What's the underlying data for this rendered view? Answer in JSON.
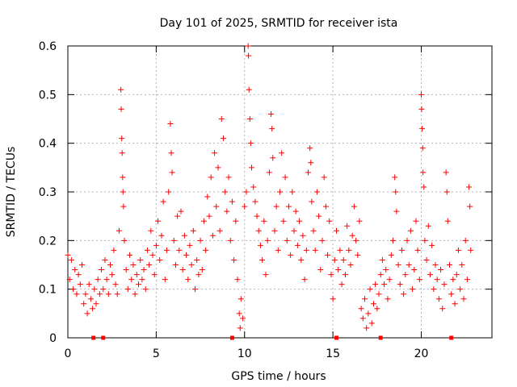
{
  "chart_data": {
    "type": "scatter",
    "title": "Day 101 of 2025, SRMTID for receiver ista",
    "xlabel": "GPS time / hours",
    "ylabel": "SRMTID / TECUs",
    "xlim": [
      0,
      24
    ],
    "ylim": [
      0,
      0.6
    ],
    "xticks": [
      0,
      5,
      10,
      15,
      20
    ],
    "xtick_labels": [
      "0",
      "5",
      "10",
      "15",
      "20"
    ],
    "yticks": [
      0,
      0.1,
      0.2,
      0.3,
      0.4,
      0.5,
      0.6
    ],
    "ytick_labels": [
      "0",
      "0.1",
      "0.2",
      "0.3",
      "0.4",
      "0.5",
      "0.6"
    ],
    "grid": true,
    "marker": "+",
    "colors": {
      "data": "#ff0000",
      "grid": "#b4b4b4",
      "axis": "#000000"
    },
    "zero_markers_x": [
      1.45,
      2.0,
      9.3,
      15.2,
      17.7,
      21.7
    ],
    "series": [
      {
        "name": "SRMTID",
        "points": [
          [
            0.0,
            0.17
          ],
          [
            0.1,
            0.12
          ],
          [
            0.2,
            0.16
          ],
          [
            0.3,
            0.1
          ],
          [
            0.4,
            0.14
          ],
          [
            0.5,
            0.09
          ],
          [
            0.6,
            0.13
          ],
          [
            0.7,
            0.11
          ],
          [
            0.8,
            0.15
          ],
          [
            0.9,
            0.07
          ],
          [
            1.0,
            0.09
          ],
          [
            1.1,
            0.05
          ],
          [
            1.2,
            0.11
          ],
          [
            1.3,
            0.08
          ],
          [
            1.4,
            0.06
          ],
          [
            1.5,
            0.1
          ],
          [
            1.6,
            0.07
          ],
          [
            1.7,
            0.12
          ],
          [
            1.8,
            0.09
          ],
          [
            1.9,
            0.14
          ],
          [
            2.0,
            0.1
          ],
          [
            2.1,
            0.16
          ],
          [
            2.2,
            0.12
          ],
          [
            2.3,
            0.09
          ],
          [
            2.4,
            0.15
          ],
          [
            2.5,
            0.13
          ],
          [
            2.6,
            0.18
          ],
          [
            2.7,
            0.11
          ],
          [
            2.8,
            0.09
          ],
          [
            2.9,
            0.22
          ],
          [
            3.0,
            0.51
          ],
          [
            3.02,
            0.47
          ],
          [
            3.05,
            0.41
          ],
          [
            3.07,
            0.38
          ],
          [
            3.1,
            0.33
          ],
          [
            3.12,
            0.3
          ],
          [
            3.15,
            0.27
          ],
          [
            3.2,
            0.2
          ],
          [
            3.3,
            0.14
          ],
          [
            3.4,
            0.1
          ],
          [
            3.5,
            0.17
          ],
          [
            3.6,
            0.12
          ],
          [
            3.7,
            0.15
          ],
          [
            3.8,
            0.09
          ],
          [
            3.9,
            0.13
          ],
          [
            4.0,
            0.11
          ],
          [
            4.1,
            0.16
          ],
          [
            4.2,
            0.12
          ],
          [
            4.3,
            0.14
          ],
          [
            4.4,
            0.1
          ],
          [
            4.5,
            0.18
          ],
          [
            4.6,
            0.15
          ],
          [
            4.7,
            0.22
          ],
          [
            4.8,
            0.17
          ],
          [
            4.9,
            0.13
          ],
          [
            5.0,
            0.19
          ],
          [
            5.1,
            0.24
          ],
          [
            5.2,
            0.16
          ],
          [
            5.3,
            0.21
          ],
          [
            5.4,
            0.28
          ],
          [
            5.5,
            0.12
          ],
          [
            5.6,
            0.18
          ],
          [
            5.7,
            0.3
          ],
          [
            5.8,
            0.44
          ],
          [
            5.85,
            0.38
          ],
          [
            5.9,
            0.34
          ],
          [
            6.0,
            0.2
          ],
          [
            6.1,
            0.15
          ],
          [
            6.2,
            0.25
          ],
          [
            6.3,
            0.18
          ],
          [
            6.4,
            0.26
          ],
          [
            6.5,
            0.14
          ],
          [
            6.6,
            0.21
          ],
          [
            6.7,
            0.17
          ],
          [
            6.8,
            0.12
          ],
          [
            6.9,
            0.19
          ],
          [
            7.0,
            0.15
          ],
          [
            7.1,
            0.22
          ],
          [
            7.2,
            0.1
          ],
          [
            7.3,
            0.16
          ],
          [
            7.4,
            0.13
          ],
          [
            7.5,
            0.2
          ],
          [
            7.6,
            0.14
          ],
          [
            7.7,
            0.24
          ],
          [
            7.8,
            0.18
          ],
          [
            7.9,
            0.29
          ],
          [
            8.0,
            0.25
          ],
          [
            8.1,
            0.33
          ],
          [
            8.2,
            0.21
          ],
          [
            8.3,
            0.38
          ],
          [
            8.4,
            0.27
          ],
          [
            8.5,
            0.35
          ],
          [
            8.6,
            0.22
          ],
          [
            8.7,
            0.45
          ],
          [
            8.8,
            0.41
          ],
          [
            8.9,
            0.3
          ],
          [
            9.0,
            0.26
          ],
          [
            9.1,
            0.33
          ],
          [
            9.2,
            0.2
          ],
          [
            9.3,
            0.28
          ],
          [
            9.4,
            0.16
          ],
          [
            9.5,
            0.24
          ],
          [
            9.6,
            0.12
          ],
          [
            9.7,
            0.05
          ],
          [
            9.75,
            0.02
          ],
          [
            9.8,
            0.08
          ],
          [
            9.9,
            0.04
          ],
          [
            10.0,
            0.27
          ],
          [
            10.1,
            0.3
          ],
          [
            10.2,
            0.6
          ],
          [
            10.22,
            0.58
          ],
          [
            10.25,
            0.51
          ],
          [
            10.3,
            0.45
          ],
          [
            10.35,
            0.4
          ],
          [
            10.4,
            0.35
          ],
          [
            10.5,
            0.31
          ],
          [
            10.6,
            0.28
          ],
          [
            10.7,
            0.25
          ],
          [
            10.8,
            0.22
          ],
          [
            10.9,
            0.19
          ],
          [
            11.0,
            0.16
          ],
          [
            11.1,
            0.24
          ],
          [
            11.2,
            0.13
          ],
          [
            11.3,
            0.2
          ],
          [
            11.4,
            0.34
          ],
          [
            11.5,
            0.46
          ],
          [
            11.55,
            0.43
          ],
          [
            11.6,
            0.37
          ],
          [
            11.7,
            0.22
          ],
          [
            11.8,
            0.27
          ],
          [
            11.9,
            0.18
          ],
          [
            12.0,
            0.3
          ],
          [
            12.1,
            0.38
          ],
          [
            12.2,
            0.24
          ],
          [
            12.3,
            0.33
          ],
          [
            12.4,
            0.2
          ],
          [
            12.5,
            0.27
          ],
          [
            12.6,
            0.17
          ],
          [
            12.7,
            0.3
          ],
          [
            12.8,
            0.22
          ],
          [
            12.9,
            0.26
          ],
          [
            13.0,
            0.19
          ],
          [
            13.1,
            0.24
          ],
          [
            13.2,
            0.16
          ],
          [
            13.3,
            0.21
          ],
          [
            13.4,
            0.12
          ],
          [
            13.5,
            0.18
          ],
          [
            13.6,
            0.34
          ],
          [
            13.7,
            0.39
          ],
          [
            13.75,
            0.36
          ],
          [
            13.8,
            0.28
          ],
          [
            13.9,
            0.22
          ],
          [
            14.0,
            0.18
          ],
          [
            14.1,
            0.3
          ],
          [
            14.2,
            0.25
          ],
          [
            14.3,
            0.14
          ],
          [
            14.4,
            0.2
          ],
          [
            14.5,
            0.33
          ],
          [
            14.6,
            0.27
          ],
          [
            14.7,
            0.17
          ],
          [
            14.8,
            0.24
          ],
          [
            14.9,
            0.13
          ],
          [
            15.0,
            0.08
          ],
          [
            15.1,
            0.16
          ],
          [
            15.2,
            0.22
          ],
          [
            15.3,
            0.14
          ],
          [
            15.4,
            0.18
          ],
          [
            15.5,
            0.11
          ],
          [
            15.6,
            0.16
          ],
          [
            15.7,
            0.13
          ],
          [
            15.8,
            0.23
          ],
          [
            15.9,
            0.18
          ],
          [
            16.0,
            0.15
          ],
          [
            16.1,
            0.21
          ],
          [
            16.2,
            0.27
          ],
          [
            16.3,
            0.2
          ],
          [
            16.4,
            0.17
          ],
          [
            16.5,
            0.24
          ],
          [
            16.6,
            0.06
          ],
          [
            16.7,
            0.04
          ],
          [
            16.8,
            0.08
          ],
          [
            16.9,
            0.02
          ],
          [
            17.0,
            0.05
          ],
          [
            17.1,
            0.1
          ],
          [
            17.2,
            0.03
          ],
          [
            17.3,
            0.07
          ],
          [
            17.4,
            0.11
          ],
          [
            17.5,
            0.06
          ],
          [
            17.6,
            0.09
          ],
          [
            17.7,
            0.13
          ],
          [
            17.8,
            0.16
          ],
          [
            17.9,
            0.11
          ],
          [
            18.0,
            0.14
          ],
          [
            18.1,
            0.08
          ],
          [
            18.2,
            0.12
          ],
          [
            18.3,
            0.17
          ],
          [
            18.4,
            0.2
          ],
          [
            18.5,
            0.33
          ],
          [
            18.55,
            0.3
          ],
          [
            18.6,
            0.26
          ],
          [
            18.7,
            0.15
          ],
          [
            18.8,
            0.11
          ],
          [
            18.9,
            0.18
          ],
          [
            19.0,
            0.09
          ],
          [
            19.1,
            0.13
          ],
          [
            19.2,
            0.2
          ],
          [
            19.3,
            0.15
          ],
          [
            19.4,
            0.22
          ],
          [
            19.5,
            0.1
          ],
          [
            19.6,
            0.14
          ],
          [
            19.7,
            0.24
          ],
          [
            19.8,
            0.18
          ],
          [
            19.9,
            0.12
          ],
          [
            20.0,
            0.5
          ],
          [
            20.02,
            0.47
          ],
          [
            20.05,
            0.43
          ],
          [
            20.08,
            0.39
          ],
          [
            20.1,
            0.34
          ],
          [
            20.15,
            0.31
          ],
          [
            20.2,
            0.2
          ],
          [
            20.3,
            0.16
          ],
          [
            20.4,
            0.23
          ],
          [
            20.5,
            0.13
          ],
          [
            20.6,
            0.19
          ],
          [
            20.7,
            0.1
          ],
          [
            20.8,
            0.15
          ],
          [
            20.9,
            0.12
          ],
          [
            21.0,
            0.08
          ],
          [
            21.1,
            0.14
          ],
          [
            21.2,
            0.06
          ],
          [
            21.3,
            0.11
          ],
          [
            21.4,
            0.34
          ],
          [
            21.45,
            0.3
          ],
          [
            21.5,
            0.24
          ],
          [
            21.6,
            0.15
          ],
          [
            21.7,
            0.09
          ],
          [
            21.8,
            0.12
          ],
          [
            21.9,
            0.07
          ],
          [
            22.0,
            0.13
          ],
          [
            22.1,
            0.18
          ],
          [
            22.2,
            0.1
          ],
          [
            22.3,
            0.15
          ],
          [
            22.4,
            0.08
          ],
          [
            22.5,
            0.2
          ],
          [
            22.6,
            0.12
          ],
          [
            22.7,
            0.31
          ],
          [
            22.75,
            0.27
          ],
          [
            22.8,
            0.18
          ]
        ]
      }
    ]
  }
}
